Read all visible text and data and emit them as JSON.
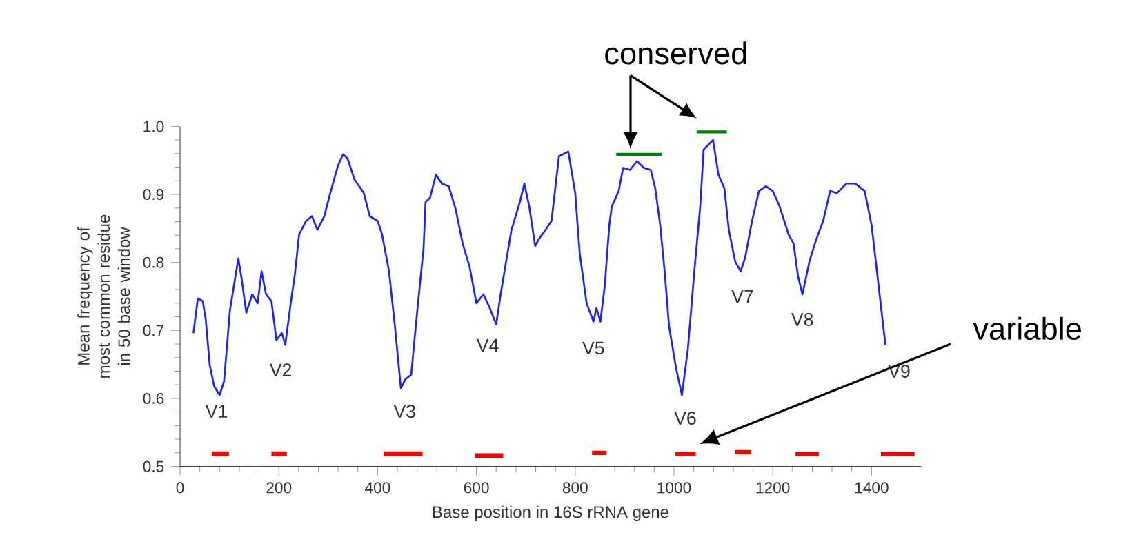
{
  "chart_data": {
    "type": "line",
    "xlabel": "Base position in 16S rRNA gene",
    "ylabel": "Mean frequency of most common residue in 50 base window",
    "xlim": [
      0,
      1500
    ],
    "ylim": [
      0.5,
      1.0
    ],
    "xticks": [
      0,
      200,
      400,
      600,
      800,
      1000,
      1200,
      1400
    ],
    "yticks": [
      0.5,
      0.6,
      0.7,
      0.8,
      0.9,
      {
        "value": 1.0,
        "label": "1.0"
      }
    ],
    "grid": false,
    "marker": "none",
    "series": [
      {
        "color": "#1f1fff",
        "x": [
          27,
          36,
          46,
          52,
          60,
          69,
          80,
          89,
          101,
          118,
          125,
          134,
          146,
          157,
          165,
          174,
          185,
          195,
          206,
          213,
          224,
          232,
          241,
          255,
          267,
          278,
          292,
          304,
          320,
          330,
          339,
          353,
          372,
          384,
          400,
          409,
          423,
          435,
          447,
          456,
          468,
          479,
          493,
          497,
          506,
          518,
          530,
          544,
          558,
          572,
          586,
          600,
          614,
          627,
          640,
          649,
          660,
          671,
          688,
          697,
          707,
          719,
          726,
          740,
          752,
          767,
          786,
          800,
          809,
          823,
          837,
          843,
          851,
          860,
          869,
          874,
          888,
          897,
          911,
          925,
          939,
          953,
          962,
          972,
          981,
          990,
          1004,
          1016,
          1028,
          1042,
          1053,
          1060,
          1079,
          1090,
          1102,
          1111,
          1124,
          1135,
          1144,
          1158,
          1172,
          1186,
          1200,
          1214,
          1232,
          1242,
          1251,
          1260,
          1274,
          1288,
          1302,
          1316,
          1330,
          1349,
          1367,
          1386,
          1400,
          1414,
          1428
        ],
        "values": [
          0.696,
          0.747,
          0.743,
          0.716,
          0.649,
          0.618,
          0.605,
          0.625,
          0.73,
          0.806,
          0.774,
          0.726,
          0.753,
          0.74,
          0.787,
          0.753,
          0.743,
          0.686,
          0.696,
          0.679,
          0.74,
          0.78,
          0.841,
          0.861,
          0.868,
          0.848,
          0.868,
          0.902,
          0.943,
          0.959,
          0.953,
          0.922,
          0.902,
          0.868,
          0.861,
          0.841,
          0.787,
          0.706,
          0.615,
          0.628,
          0.635,
          0.72,
          0.821,
          0.889,
          0.895,
          0.929,
          0.916,
          0.912,
          0.878,
          0.828,
          0.794,
          0.74,
          0.753,
          0.733,
          0.709,
          0.753,
          0.801,
          0.848,
          0.889,
          0.916,
          0.882,
          0.824,
          0.834,
          0.848,
          0.861,
          0.956,
          0.963,
          0.902,
          0.814,
          0.74,
          0.713,
          0.733,
          0.713,
          0.767,
          0.855,
          0.882,
          0.905,
          0.939,
          0.936,
          0.949,
          0.939,
          0.936,
          0.909,
          0.855,
          0.787,
          0.706,
          0.645,
          0.605,
          0.672,
          0.794,
          0.882,
          0.966,
          0.98,
          0.929,
          0.909,
          0.848,
          0.801,
          0.787,
          0.807,
          0.861,
          0.905,
          0.912,
          0.905,
          0.882,
          0.841,
          0.828,
          0.78,
          0.753,
          0.801,
          0.834,
          0.861,
          0.905,
          0.902,
          0.916,
          0.916,
          0.905,
          0.855,
          0.767,
          0.679
        ]
      },
      {
        "color": "#008000",
        "x": [
          883,
          976,
          1000,
          1046,
          1107
        ],
        "values": [
          0.959,
          0.959,
          null,
          0.992,
          0.992
        ]
      },
      {
        "color": "#ff0000",
        "x": [
          64,
          99,
          140,
          185,
          216,
          300,
          412,
          491,
          540,
          597,
          654,
          700,
          834,
          863,
          930,
          1003,
          1044,
          1080,
          1123,
          1156,
          1200,
          1246,
          1293,
          1350,
          1419,
          1487
        ],
        "values": [
          0.519,
          0.519,
          null,
          0.519,
          0.519,
          null,
          0.519,
          0.519,
          null,
          0.516,
          0.516,
          null,
          0.52,
          0.52,
          null,
          0.518,
          0.518,
          null,
          0.521,
          0.521,
          null,
          0.518,
          0.518,
          null,
          0.518,
          0.518
        ]
      }
    ],
    "annotations": [
      "V1",
      "V2",
      "V3",
      "V4",
      "V5",
      "V6",
      "V7",
      "V8",
      "V9",
      "conserved",
      "variable"
    ]
  }
}
